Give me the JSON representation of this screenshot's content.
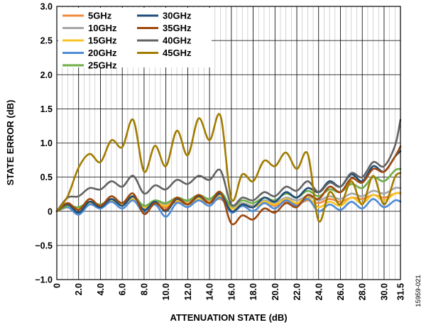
{
  "figure_id": "15959-021",
  "chart_data": {
    "type": "line",
    "xlabel": "ATTENUATION STATE (dB)",
    "ylabel": "STATE ERROR (dB)",
    "xlim": [
      0,
      31.5
    ],
    "ylim": [
      -1.0,
      3.0
    ],
    "grid": true,
    "legend_position": "top-left",
    "x_ticks": [
      0,
      2,
      4,
      6,
      8,
      10,
      12,
      14,
      16,
      18,
      20,
      22,
      24,
      26,
      28,
      30,
      31.5
    ],
    "x_tick_labels": [
      "0",
      "2.0",
      "4.0",
      "6.0",
      "8.0",
      "10.0",
      "12.0",
      "14.0",
      "16.0",
      "18.0",
      "20.0",
      "22.0",
      "24.0",
      "26.0",
      "28.0",
      "30.0",
      "31.5"
    ],
    "y_ticks": [
      -1.0,
      -0.5,
      0,
      0.5,
      1.0,
      1.5,
      2.0,
      2.5,
      3.0
    ],
    "y_tick_labels": [
      "−1.0",
      "−0.5",
      "0",
      "0.5",
      "1.0",
      "1.5",
      "2.0",
      "2.5",
      "3.0"
    ],
    "minor_x_step": 0.5,
    "x": [
      0,
      1,
      2,
      3,
      4,
      5,
      6,
      7,
      8,
      9,
      10,
      11,
      12,
      13,
      14,
      15,
      16,
      17,
      18,
      19,
      20,
      21,
      22,
      23,
      24,
      25,
      26,
      27,
      28,
      29,
      30,
      31,
      31.5
    ],
    "series": [
      {
        "name": "5GHz",
        "color": "#f08a3c",
        "values": [
          0,
          0.06,
          0.04,
          0.1,
          0.08,
          0.14,
          0.1,
          0.16,
          0.06,
          0.1,
          0.06,
          0.14,
          0.1,
          0.16,
          0.12,
          0.18,
          0.04,
          0.08,
          0.06,
          0.12,
          0.08,
          0.14,
          0.1,
          0.16,
          0.12,
          0.18,
          0.14,
          0.2,
          0.18,
          0.24,
          0.2,
          0.26,
          0.27
        ]
      },
      {
        "name": "10GHz",
        "color": "#a6a6a6",
        "values": [
          0,
          0.08,
          0.05,
          0.12,
          0.1,
          0.16,
          0.12,
          0.2,
          0.08,
          0.14,
          0.1,
          0.18,
          0.14,
          0.2,
          0.16,
          0.24,
          0.06,
          0.12,
          0.08,
          0.16,
          0.12,
          0.2,
          0.16,
          0.22,
          0.16,
          0.22,
          0.18,
          0.26,
          0.22,
          0.3,
          0.26,
          0.34,
          0.34
        ]
      },
      {
        "name": "15GHz",
        "color": "#f6c325",
        "values": [
          0,
          0.07,
          0.03,
          0.12,
          0.08,
          0.15,
          0.1,
          0.18,
          0.06,
          0.12,
          0.08,
          0.16,
          0.12,
          0.19,
          0.14,
          0.22,
          0.04,
          0.1,
          0.06,
          0.14,
          0.1,
          0.18,
          0.12,
          0.2,
          0.06,
          0.14,
          0.08,
          0.2,
          0.12,
          0.24,
          0.16,
          0.26,
          0.26
        ]
      },
      {
        "name": "20GHz",
        "color": "#4f8dd6",
        "values": [
          0,
          0.06,
          -0.05,
          0.1,
          0.04,
          0.14,
          0.04,
          0.16,
          -0.02,
          0.1,
          -0.08,
          0.12,
          0.06,
          0.16,
          0.08,
          0.2,
          -0.02,
          0.08,
          0.0,
          0.12,
          0.04,
          0.16,
          0.08,
          0.18,
          0.0,
          0.1,
          0.02,
          0.14,
          0.04,
          0.18,
          0.06,
          0.16,
          0.14
        ]
      },
      {
        "name": "25GHz",
        "color": "#70ad47",
        "values": [
          0,
          0.08,
          0.06,
          0.14,
          0.1,
          0.18,
          0.12,
          0.22,
          0.08,
          0.16,
          0.12,
          0.2,
          0.16,
          0.24,
          0.18,
          0.28,
          0.08,
          0.16,
          0.12,
          0.2,
          0.16,
          0.26,
          0.2,
          0.3,
          0.22,
          0.32,
          0.28,
          0.4,
          0.34,
          0.5,
          0.44,
          0.6,
          0.62
        ]
      },
      {
        "name": "30GHz",
        "color": "#1f4e79",
        "values": [
          0,
          0.1,
          -0.02,
          0.14,
          0.06,
          0.18,
          0.08,
          0.22,
          0.02,
          0.14,
          0.0,
          0.18,
          0.1,
          0.22,
          0.12,
          0.26,
          0.0,
          0.1,
          0.06,
          0.2,
          0.14,
          0.28,
          0.2,
          0.34,
          0.28,
          0.44,
          0.36,
          0.54,
          0.44,
          0.66,
          0.58,
          0.8,
          0.88
        ]
      },
      {
        "name": "35GHz",
        "color": "#9e480e",
        "values": [
          0,
          0.12,
          0.02,
          0.18,
          0.08,
          0.22,
          0.12,
          0.26,
          -0.04,
          0.12,
          0.02,
          0.2,
          0.1,
          0.24,
          0.12,
          0.28,
          -0.18,
          -0.06,
          -0.12,
          0.04,
          -0.02,
          0.12,
          0.06,
          0.24,
          0.18,
          0.36,
          0.28,
          0.48,
          0.42,
          0.62,
          0.58,
          0.8,
          0.95
        ]
      },
      {
        "name": "40GHz",
        "color": "#636363",
        "values": [
          0,
          0.2,
          0.22,
          0.34,
          0.32,
          0.44,
          0.36,
          0.52,
          0.26,
          0.38,
          0.32,
          0.46,
          0.4,
          0.52,
          0.46,
          0.6,
          0.1,
          0.2,
          0.16,
          0.28,
          0.22,
          0.36,
          0.3,
          0.44,
          0.28,
          0.42,
          0.36,
          0.56,
          0.5,
          0.72,
          0.66,
          0.96,
          1.34
        ]
      },
      {
        "name": "45GHz",
        "color": "#a17c00",
        "values": [
          0,
          0.22,
          0.64,
          0.84,
          0.72,
          1.04,
          0.94,
          1.34,
          0.58,
          0.96,
          0.66,
          1.18,
          0.82,
          1.36,
          1.04,
          1.4,
          0.18,
          0.54,
          0.44,
          0.74,
          0.66,
          0.86,
          0.62,
          0.84,
          -0.14,
          0.28,
          0.1,
          0.44,
          0.1,
          0.52,
          0.1,
          0.5,
          0.56
        ]
      }
    ]
  }
}
